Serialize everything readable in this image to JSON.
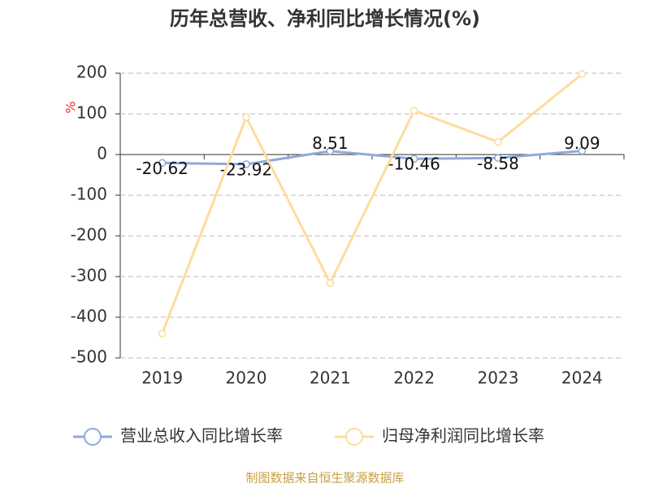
{
  "chart_data": {
    "type": "line",
    "title": "历年总营收、净利同比增长情况(%)",
    "unit": "%",
    "categories": [
      "2019",
      "2020",
      "2021",
      "2022",
      "2023",
      "2024"
    ],
    "series": [
      {
        "name": "营业总收入同比增长率",
        "color": "#8faadc",
        "values": [
          -20.62,
          -23.92,
          8.51,
          -10.46,
          -8.58,
          9.09
        ]
      },
      {
        "name": "归母净利润同比增长率",
        "color": "#fddc9c",
        "values": [
          -440,
          92,
          -316,
          108,
          31,
          198
        ]
      }
    ],
    "ylim": [
      -500,
      200
    ],
    "yticks": [
      -500,
      -400,
      -300,
      -200,
      -100,
      0,
      100,
      200
    ],
    "grid": true,
    "source": "制图数据来自恒生聚源数据库"
  }
}
